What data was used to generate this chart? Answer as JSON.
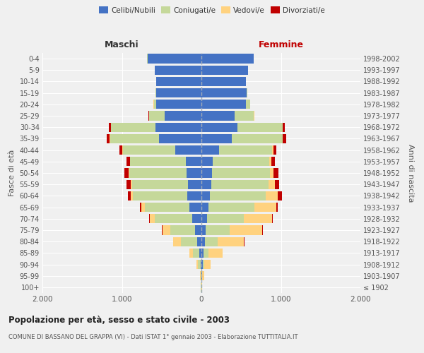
{
  "age_groups": [
    "100+",
    "95-99",
    "90-94",
    "85-89",
    "80-84",
    "75-79",
    "70-74",
    "65-69",
    "60-64",
    "55-59",
    "50-54",
    "45-49",
    "40-44",
    "35-39",
    "30-34",
    "25-29",
    "20-24",
    "15-19",
    "10-14",
    "5-9",
    "0-4"
  ],
  "birth_years": [
    "≤ 1902",
    "1903-1907",
    "1908-1912",
    "1913-1917",
    "1918-1922",
    "1923-1927",
    "1928-1932",
    "1933-1937",
    "1938-1942",
    "1943-1947",
    "1948-1952",
    "1953-1957",
    "1958-1962",
    "1963-1967",
    "1968-1972",
    "1973-1977",
    "1978-1982",
    "1983-1987",
    "1988-1992",
    "1993-1997",
    "1998-2002"
  ],
  "maschi": {
    "celibi": [
      2,
      4,
      12,
      25,
      55,
      80,
      120,
      150,
      180,
      170,
      185,
      195,
      330,
      530,
      580,
      460,
      570,
      570,
      570,
      590,
      680
    ],
    "coniugati": [
      3,
      8,
      30,
      80,
      200,
      310,
      470,
      560,
      680,
      700,
      720,
      700,
      660,
      620,
      560,
      200,
      30,
      5,
      2,
      1,
      1
    ],
    "vedovi": [
      1,
      5,
      20,
      50,
      100,
      100,
      60,
      50,
      25,
      15,
      10,
      5,
      5,
      2,
      1,
      1,
      1,
      0,
      0,
      0,
      0
    ],
    "divorziati": [
      0,
      0,
      0,
      0,
      2,
      5,
      8,
      15,
      40,
      55,
      55,
      45,
      35,
      40,
      25,
      5,
      3,
      1,
      0,
      0,
      0
    ]
  },
  "femmine": {
    "nubili": [
      2,
      5,
      15,
      25,
      40,
      55,
      70,
      90,
      110,
      120,
      130,
      140,
      220,
      380,
      450,
      420,
      560,
      570,
      560,
      590,
      660
    ],
    "coniugate": [
      2,
      5,
      20,
      65,
      165,
      300,
      460,
      580,
      700,
      720,
      730,
      710,
      670,
      640,
      570,
      240,
      50,
      10,
      3,
      1,
      1
    ],
    "vedove": [
      5,
      25,
      80,
      180,
      330,
      410,
      360,
      270,
      150,
      80,
      50,
      30,
      15,
      5,
      5,
      3,
      2,
      0,
      0,
      0,
      0
    ],
    "divorziate": [
      0,
      0,
      0,
      1,
      3,
      5,
      10,
      20,
      50,
      55,
      55,
      45,
      35,
      40,
      25,
      5,
      3,
      1,
      0,
      0,
      0
    ]
  },
  "colors": {
    "celibi": "#4472C4",
    "coniugati": "#C5D89A",
    "vedovi": "#FFD27F",
    "divorziati": "#C00000"
  },
  "title": "Popolazione per età, sesso e stato civile - 2003",
  "subtitle": "COMUNE DI BASSANO DEL GRAPPA (VI) - Dati ISTAT 1° gennaio 2003 - Elaborazione TUTTITALIA.IT",
  "ylabel": "Fasce di età",
  "ylabel_right": "Anni di nascita",
  "xlabel_left": "Maschi",
  "xlabel_right": "Femmine",
  "xlim": 2000,
  "xticks": [
    -2000,
    -1000,
    0,
    1000,
    2000
  ],
  "xticklabels": [
    "2.000",
    "1.000",
    "0",
    "1.000",
    "2.000"
  ],
  "bg_color": "#f0f0f0",
  "grid_color": "#ffffff"
}
